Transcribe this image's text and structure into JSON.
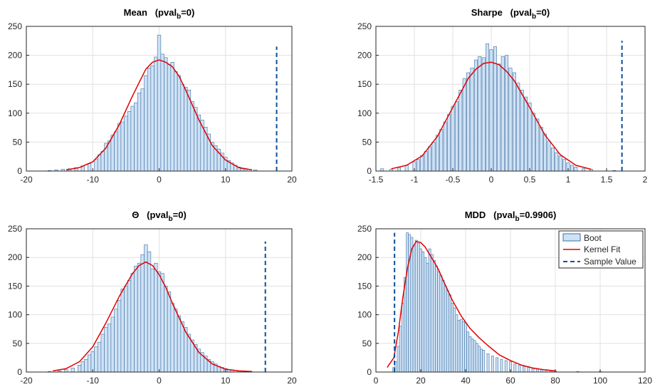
{
  "figure": {
    "legend": {
      "entries": [
        {
          "label": "Boot",
          "kind": "bar"
        },
        {
          "label": "Kernel Fit",
          "kind": "line"
        },
        {
          "label": "Sample Value",
          "kind": "dashed"
        }
      ],
      "placement": "top-right of MDD panel"
    },
    "colors": {
      "bar_fill": "#cfe2f5",
      "bar_edge": "#3d6fa3",
      "kernel_line": "#e00000",
      "sample_line": "#0b4f9c",
      "grid": "#e1e1e1",
      "axis": "#262626"
    }
  },
  "chart_data": [
    {
      "id": "mean",
      "type": "bar",
      "title": "Mean (pval_b=0)",
      "title_parts": {
        "main": "Mean",
        "pre": "(pval",
        "sub": "b",
        "post": "=0)"
      },
      "xlim": [
        -20,
        20
      ],
      "ylim": [
        0,
        250
      ],
      "xticks": [
        -20,
        -10,
        0,
        10,
        20
      ],
      "yticks": [
        0,
        50,
        100,
        150,
        200,
        250
      ],
      "grid": true,
      "sample_value": 17.7,
      "sample_line_top": 215,
      "bin_width": 0.5,
      "histogram_counts": {
        "x": [
          -16.5,
          -15.5,
          -14.5,
          -13.5,
          -12.5,
          -11.5,
          -10.5,
          -9.5,
          -9,
          -8.5,
          -8,
          -7.5,
          -7,
          -6.5,
          -6,
          -5.5,
          -5,
          -4.5,
          -4,
          -3.5,
          -3,
          -2.5,
          -2,
          -1.5,
          -1,
          -0.5,
          0,
          0.5,
          1,
          1.5,
          2,
          2.5,
          3,
          3.5,
          4,
          4.5,
          5,
          5.5,
          6,
          6.5,
          7,
          7.5,
          8,
          8.5,
          9,
          9.5,
          10,
          10.5,
          11,
          11.5,
          12,
          12.5,
          13,
          14.5
        ],
        "counts": [
          1,
          2,
          3,
          4,
          6,
          9,
          13,
          20,
          28,
          34,
          48,
          52,
          62,
          68,
          82,
          85,
          95,
          103,
          112,
          118,
          135,
          142,
          165,
          178,
          182,
          197,
          235,
          202,
          196,
          184,
          188,
          172,
          165,
          150,
          145,
          140,
          120,
          110,
          97,
          88,
          76,
          64,
          50,
          44,
          38,
          31,
          24,
          18,
          14,
          10,
          7,
          4,
          3,
          2
        ]
      },
      "kernel_fit": {
        "x": [
          -14,
          -12,
          -10,
          -8,
          -6,
          -4,
          -2,
          -1,
          0,
          1,
          2,
          3,
          4,
          6,
          8,
          10,
          12,
          14
        ],
        "y": [
          2,
          6,
          16,
          40,
          80,
          130,
          176,
          188,
          192,
          188,
          180,
          164,
          140,
          88,
          44,
          19,
          6,
          2
        ]
      }
    },
    {
      "id": "sharpe",
      "type": "bar",
      "title": "Sharpe (pval_b=0)",
      "title_parts": {
        "main": "Sharpe",
        "pre": "(pval",
        "sub": "b",
        "post": "=0)"
      },
      "xlim": [
        -1.5,
        2
      ],
      "ylim": [
        0,
        250
      ],
      "xticks": [
        -1.5,
        -1,
        -0.5,
        0,
        0.5,
        1,
        1.5,
        2
      ],
      "yticks": [
        0,
        50,
        100,
        150,
        200,
        250
      ],
      "grid": true,
      "sample_value": 1.7,
      "sample_line_top": 225,
      "bin_width": 0.04,
      "histogram_counts": {
        "x": [
          -1.42,
          -1.3,
          -1.2,
          -1.1,
          -1.0,
          -0.95,
          -0.9,
          -0.85,
          -0.8,
          -0.75,
          -0.7,
          -0.65,
          -0.6,
          -0.55,
          -0.5,
          -0.45,
          -0.4,
          -0.35,
          -0.3,
          -0.25,
          -0.2,
          -0.15,
          -0.1,
          -0.05,
          0,
          0.05,
          0.1,
          0.15,
          0.2,
          0.25,
          0.3,
          0.35,
          0.4,
          0.45,
          0.5,
          0.55,
          0.6,
          0.65,
          0.7,
          0.75,
          0.8,
          0.85,
          0.9,
          0.95,
          1.0,
          1.05,
          1.1,
          1.2,
          1.3,
          1.6
        ],
        "counts": [
          4,
          3,
          6,
          10,
          16,
          20,
          27,
          34,
          42,
          50,
          62,
          72,
          85,
          98,
          112,
          120,
          140,
          160,
          170,
          178,
          192,
          198,
          196,
          220,
          210,
          215,
          185,
          198,
          200,
          178,
          170,
          152,
          140,
          128,
          118,
          100,
          90,
          76,
          64,
          52,
          40,
          32,
          26,
          20,
          14,
          10,
          7,
          4,
          3,
          1
        ]
      },
      "kernel_fit": {
        "x": [
          -1.3,
          -1.1,
          -0.9,
          -0.7,
          -0.5,
          -0.3,
          -0.2,
          -0.1,
          0,
          0.1,
          0.2,
          0.3,
          0.5,
          0.7,
          0.9,
          1.1,
          1.3
        ],
        "y": [
          4,
          10,
          26,
          60,
          110,
          160,
          176,
          186,
          188,
          184,
          172,
          156,
          110,
          62,
          28,
          10,
          3
        ]
      }
    },
    {
      "id": "theta",
      "type": "bar",
      "title": "Θ (pval_b=0)",
      "title_parts": {
        "main": "Θ",
        "pre": "(pval",
        "sub": "b",
        "post": "=0)"
      },
      "xlim": [
        -20,
        20
      ],
      "ylim": [
        0,
        250
      ],
      "xticks": [
        -20,
        -10,
        0,
        10,
        20
      ],
      "yticks": [
        0,
        50,
        100,
        150,
        200,
        250
      ],
      "grid": true,
      "sample_value": 16.0,
      "sample_line_top": 228,
      "bin_width": 0.5,
      "histogram_counts": {
        "x": [
          -16.5,
          -15,
          -14,
          -13,
          -12,
          -11.5,
          -11,
          -10.5,
          -10,
          -9.5,
          -9,
          -8.5,
          -8,
          -7.5,
          -7,
          -6.5,
          -6,
          -5.5,
          -5,
          -4.5,
          -4,
          -3.5,
          -3,
          -2.5,
          -2,
          -1.5,
          -1,
          -0.5,
          0,
          0.5,
          1,
          1.5,
          2,
          2.5,
          3,
          3.5,
          4,
          4.5,
          5,
          5.5,
          6,
          6.5,
          7,
          7.5,
          8,
          8.5,
          9,
          9.5,
          10,
          10.5,
          11,
          12,
          13
        ],
        "counts": [
          1,
          2,
          4,
          7,
          12,
          18,
          22,
          30,
          36,
          44,
          52,
          66,
          78,
          84,
          96,
          110,
          125,
          145,
          150,
          160,
          172,
          185,
          190,
          205,
          222,
          210,
          180,
          190,
          175,
          172,
          150,
          140,
          120,
          110,
          98,
          88,
          78,
          66,
          56,
          48,
          40,
          34,
          28,
          22,
          18,
          14,
          10,
          8,
          6,
          4,
          3,
          2,
          1
        ]
      },
      "kernel_fit": {
        "x": [
          -16,
          -14,
          -12,
          -10,
          -8,
          -6,
          -4,
          -3,
          -2,
          -1,
          0,
          1,
          2,
          4,
          6,
          8,
          10,
          12,
          14
        ],
        "y": [
          2,
          6,
          18,
          44,
          86,
          132,
          172,
          186,
          192,
          186,
          170,
          148,
          120,
          70,
          34,
          14,
          5,
          2,
          1
        ]
      }
    },
    {
      "id": "mdd",
      "type": "bar",
      "title": "MDD (pval_b=0.9906)",
      "title_parts": {
        "main": "MDD",
        "pre": "(pval",
        "sub": "b",
        "post": "=0.9906)"
      },
      "xlim": [
        0,
        120
      ],
      "ylim": [
        0,
        250
      ],
      "xticks": [
        0,
        20,
        40,
        60,
        80,
        100,
        120
      ],
      "yticks": [
        0,
        50,
        100,
        150,
        200,
        250
      ],
      "grid": true,
      "sample_value": 8.3,
      "sample_line_top": 243,
      "bin_width": 1.0,
      "histogram_counts": {
        "x": [
          8,
          9,
          10,
          11,
          12,
          13,
          14,
          15,
          16,
          17,
          18,
          19,
          20,
          21,
          22,
          23,
          24,
          25,
          26,
          27,
          28,
          29,
          30,
          31,
          32,
          33,
          34,
          35,
          36,
          37,
          38,
          39,
          40,
          41,
          42,
          43,
          44,
          45,
          46,
          47,
          48,
          50,
          52,
          54,
          56,
          58,
          60,
          62,
          64,
          66,
          68,
          70,
          72,
          74,
          76,
          78,
          80,
          90,
          100
        ],
        "counts": [
          8,
          18,
          45,
          80,
          120,
          165,
          243,
          240,
          235,
          220,
          230,
          225,
          215,
          210,
          200,
          190,
          215,
          205,
          195,
          185,
          175,
          168,
          160,
          150,
          142,
          135,
          120,
          112,
          100,
          90,
          92,
          88,
          85,
          70,
          62,
          58,
          55,
          50,
          45,
          40,
          38,
          32,
          28,
          25,
          22,
          20,
          18,
          14,
          12,
          10,
          8,
          6,
          5,
          4,
          3,
          2,
          2,
          1,
          1
        ]
      },
      "kernel_fit": {
        "x": [
          5,
          8,
          10,
          12,
          14,
          16,
          18,
          20,
          22,
          24,
          26,
          28,
          30,
          34,
          38,
          42,
          46,
          50,
          55,
          60,
          65,
          70,
          75,
          80
        ],
        "y": [
          8,
          25,
          70,
          130,
          180,
          215,
          228,
          226,
          218,
          205,
          192,
          178,
          160,
          126,
          98,
          76,
          60,
          46,
          30,
          20,
          12,
          7,
          4,
          2
        ]
      }
    }
  ]
}
